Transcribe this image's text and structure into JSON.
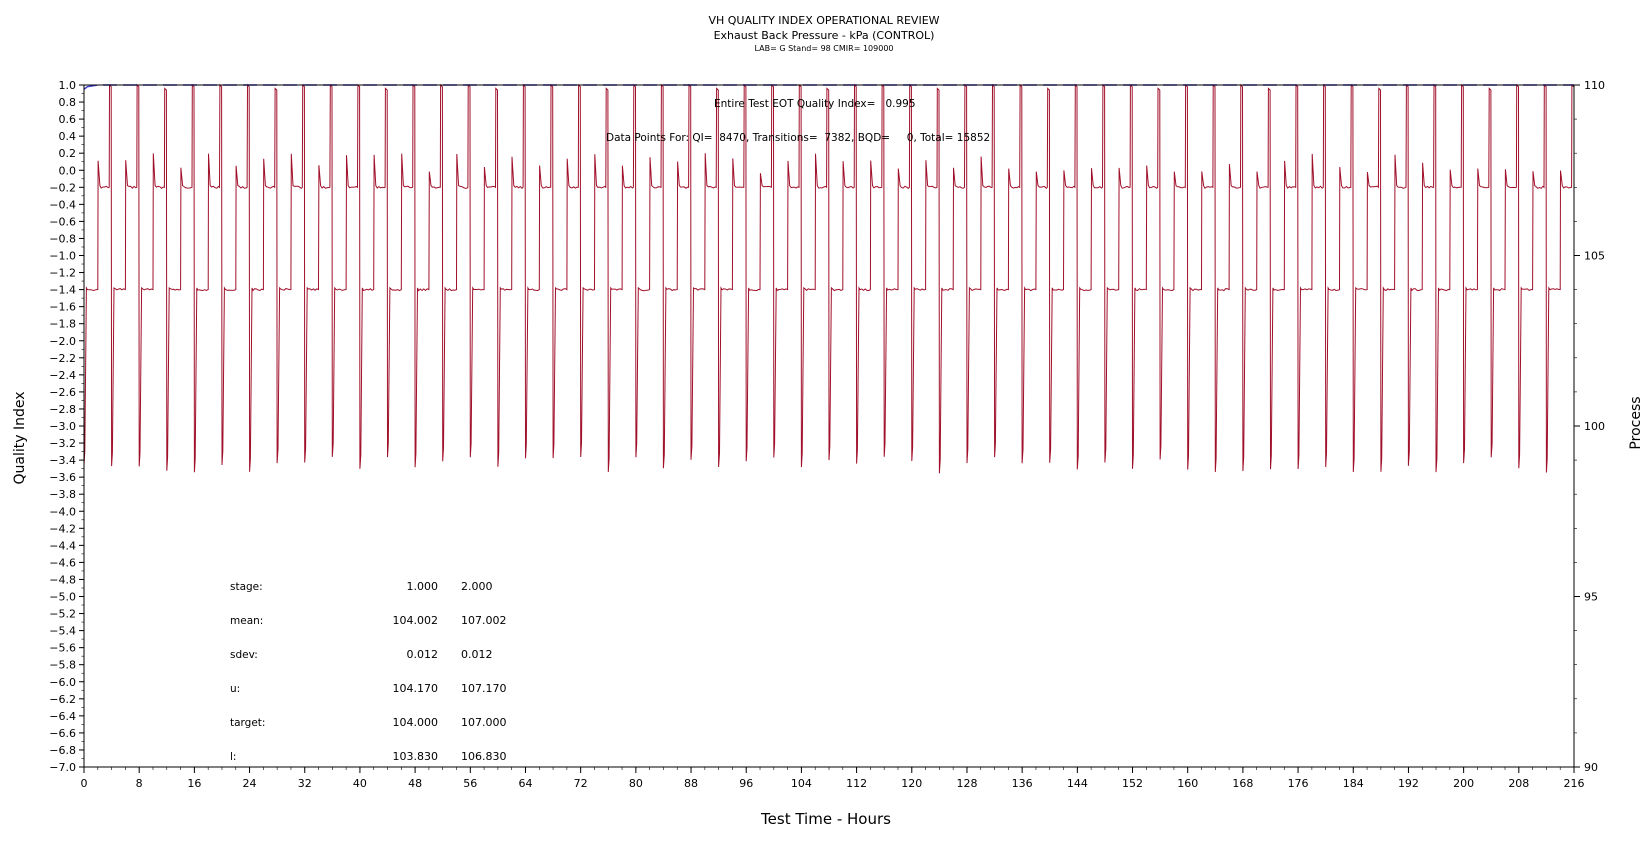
{
  "header": {
    "title": "VH QUALITY INDEX OPERATIONAL REVIEW",
    "subtitle": "Exhaust Back Pressure - kPa (CONTROL)",
    "sub2": "LAB= G Stand= 98 CMIR= 109000"
  },
  "annotations": {
    "qi_text": "Entire Test EOT Quality Index=   0.995",
    "points_text": "Data Points For: QI=  8470, Transitions=  7382, BQD=     0, Total= 15852"
  },
  "stats": {
    "rows": [
      {
        "label": "stage:",
        "v1": "1.000",
        "v2": "2.000"
      },
      {
        "label": "mean:",
        "v1": "104.002",
        "v2": "107.002"
      },
      {
        "label": "sdev:",
        "v1": "0.012",
        "v2": "0.012"
      },
      {
        "label": "u:",
        "v1": "104.170",
        "v2": "107.170"
      },
      {
        "label": "target:",
        "v1": "104.000",
        "v2": "107.000"
      },
      {
        "label": "l:",
        "v1": "103.830",
        "v2": "106.830"
      }
    ]
  },
  "colors": {
    "process": "#a0102a",
    "quality_index": "#3b3bd6"
  },
  "chart_data": {
    "type": "line",
    "xlabel": "Test Time - Hours",
    "ylabel": "Quality Index",
    "y2label": "Process",
    "xlim": [
      0,
      216
    ],
    "ylim": [
      -7.0,
      1.0
    ],
    "y2lim": [
      90,
      110
    ],
    "x_ticks": [
      0,
      8,
      16,
      24,
      32,
      40,
      48,
      56,
      64,
      72,
      80,
      88,
      96,
      104,
      112,
      120,
      128,
      136,
      144,
      152,
      160,
      168,
      176,
      184,
      192,
      200,
      208,
      216
    ],
    "y_ticks": [
      "1.0",
      "0.8",
      "0.6",
      "0.4",
      "0.2",
      "0.0",
      "-0.2",
      "-0.4",
      "-0.6",
      "-0.8",
      "-1.0",
      "-1.2",
      "-1.4",
      "-1.6",
      "-1.8",
      "-2.0",
      "-2.2",
      "-2.4",
      "-2.6",
      "-2.8",
      "-3.0",
      "-3.2",
      "-3.4",
      "-3.6",
      "-3.8",
      "-4.0",
      "-4.2",
      "-4.4",
      "-4.6",
      "-4.8",
      "-5.0",
      "-5.2",
      "-5.4",
      "-5.6",
      "-5.8",
      "-6.0",
      "-6.2",
      "-6.4",
      "-6.6",
      "-6.8",
      "-7.0"
    ],
    "y2_ticks": [
      110,
      105,
      100,
      95,
      90
    ],
    "series": [
      {
        "name": "Process",
        "axis": "right",
        "stage_levels": [
          104.0,
          107.0
        ],
        "cycle_hours": 4,
        "stage_pattern": "alternating 104 / 107 kPa stages with transition spikes near 110 and dips near 98.5",
        "x": [
          0,
          0.4,
          2,
          2.1,
          3.6,
          3.7,
          4,
          4.1,
          6,
          6.1,
          7.6,
          7.7,
          8,
          8.1,
          10,
          10.1,
          11.6,
          11.7,
          12
        ],
        "y": [
          98.8,
          104.0,
          104.0,
          107.0,
          107.0,
          110.0,
          98.8,
          104.0,
          104.0,
          107.0,
          107.0,
          110.0,
          98.8,
          104.0,
          104.0,
          107.0,
          107.0,
          110.0,
          98.8
        ]
      },
      {
        "name": "Quality Index",
        "axis": "left",
        "x": [
          0,
          0.5,
          2,
          216
        ],
        "y": [
          0.95,
          0.98,
          1.0,
          1.0
        ]
      }
    ]
  }
}
